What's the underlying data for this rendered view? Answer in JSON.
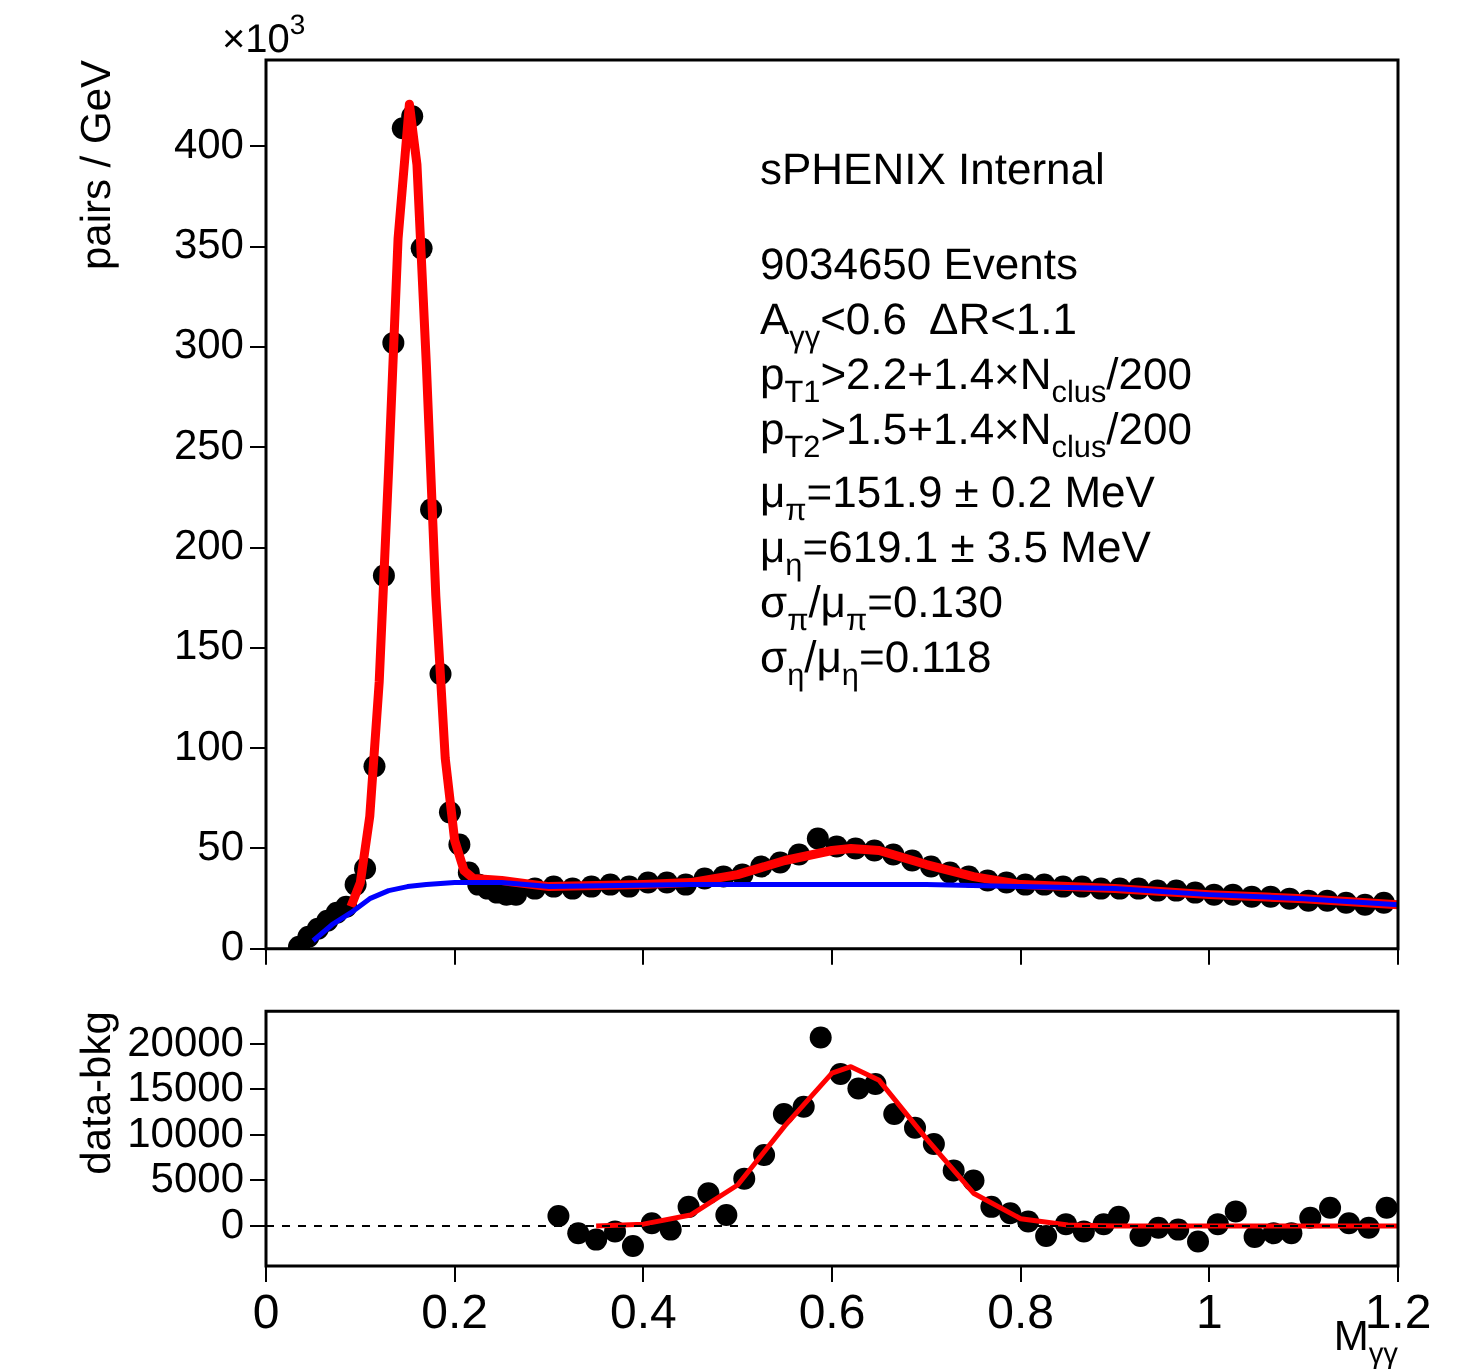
{
  "chart_data": [
    {
      "type": "scatter",
      "ylabel": "pairs / GeV",
      "xlim": [
        0,
        1.2
      ],
      "xticks": [
        0,
        0.2,
        0.4,
        0.6,
        0.8,
        1,
        1.2
      ],
      "ylim": [
        0,
        443
      ],
      "yticks": [
        0,
        50,
        100,
        150,
        200,
        250,
        300,
        350,
        400
      ],
      "tick_labels": "y",
      "marker": "circle",
      "legend": false,
      "grid": false,
      "annotations": [
        "×10$^{3}$",
        "sPHENIX Internal",
        "9034650 Events",
        "A$_{γγ}$<0.6  ΔR<1.1",
        "p$_{T1}$>2.2+1.4×N$_{clus}$/200",
        "p$_{T2}$>1.5+1.4×N$_{clus}$/200",
        "μ$_{π}$=151.9 ± 0.2 MeV",
        "μ$_{η}$=619.1 ± 3.5 MeV",
        "σ$_{π}$/μ$_{π}$=0.130",
        "σ$_{η}$/μ$_{η}$=0.118"
      ],
      "series": [
        {
          "type": "line",
          "marker": "none",
          "color": "#ff0000",
          "x": [
            0.09,
            0.1,
            0.11,
            0.12,
            0.13,
            0.14,
            0.152,
            0.16,
            0.17,
            0.18,
            0.19,
            0.2,
            0.21,
            0.22,
            0.25,
            0.3,
            0.4,
            0.45,
            0.5,
            0.55,
            0.6,
            0.62,
            0.65,
            0.7,
            0.75,
            0.8,
            0.85,
            0.9,
            1.0,
            1.1,
            1.2
          ],
          "values": [
            21,
            33,
            66,
            133,
            239,
            354,
            421,
            391,
            291,
            176,
            95,
            54,
            39,
            35,
            34,
            31,
            32,
            33,
            37,
            44,
            49,
            50,
            49,
            42,
            36,
            32,
            31,
            30,
            27,
            25,
            22
          ]
        },
        {
          "type": "line",
          "marker": "none",
          "color": "#0000ff",
          "x": [
            0.05,
            0.07,
            0.09,
            0.11,
            0.13,
            0.15,
            0.17,
            0.2,
            0.25,
            0.3,
            0.45,
            0.5,
            0.7,
            0.8,
            0.9,
            1.0,
            1.1,
            1.2
          ],
          "values": [
            4,
            12,
            18,
            25,
            29,
            31,
            32,
            33,
            33,
            31,
            32,
            32,
            32,
            31,
            30,
            27,
            25,
            22
          ]
        },
        {
          "color": "#000000",
          "x": [
            0.035,
            0.045,
            0.055,
            0.065,
            0.075,
            0.085,
            0.095,
            0.105,
            0.115,
            0.125,
            0.135,
            0.145,
            0.155,
            0.165,
            0.175,
            0.185,
            0.195,
            0.205,
            0.215,
            0.225,
            0.235,
            0.245,
            0.255,
            0.265,
            0.285,
            0.305,
            0.325,
            0.345,
            0.365,
            0.385,
            0.405,
            0.425,
            0.445,
            0.465,
            0.485,
            0.505,
            0.525,
            0.545,
            0.565,
            0.585,
            0.605,
            0.625,
            0.645,
            0.665,
            0.685,
            0.705,
            0.725,
            0.745,
            0.765,
            0.785,
            0.805,
            0.825,
            0.845,
            0.865,
            0.885,
            0.905,
            0.925,
            0.945,
            0.965,
            0.985,
            1.005,
            1.025,
            1.045,
            1.065,
            1.085,
            1.105,
            1.125,
            1.145,
            1.165,
            1.185
          ],
          "values": [
            1,
            6,
            10,
            14,
            18,
            21,
            32,
            40,
            91,
            186,
            302,
            409,
            415,
            349,
            219,
            137,
            68,
            52,
            38,
            32,
            30,
            28,
            27,
            27,
            30,
            31,
            30,
            31,
            32,
            31,
            33,
            33,
            32,
            35,
            36,
            37,
            41,
            43,
            47,
            55,
            51,
            50,
            49,
            47,
            44,
            41,
            38,
            36,
            34,
            33,
            32,
            32,
            31,
            31,
            30,
            30,
            30,
            29,
            29,
            28,
            27,
            27,
            26,
            26,
            25,
            24,
            24,
            23,
            22,
            23
          ]
        }
      ]
    },
    {
      "type": "scatter",
      "ylabel": "data-bkg",
      "xlabel": "M$_{γγ}$",
      "xlim": [
        0,
        1.2
      ],
      "xticks": [
        0,
        0.2,
        0.4,
        0.6,
        0.8,
        1,
        1.2
      ],
      "ylim": [
        -4400,
        23600
      ],
      "yticks": [
        0,
        5000,
        10000,
        15000,
        20000
      ],
      "marker": "circle",
      "legend": false,
      "grid": false,
      "ref_lines": [
        {
          "axis": "y",
          "value": 0,
          "color": "#000000",
          "line_style": "dashed"
        }
      ],
      "series": [
        {
          "type": "line",
          "marker": "none",
          "color": "#ff0000",
          "x": [
            0.35,
            0.4,
            0.45,
            0.5,
            0.55,
            0.6,
            0.62,
            0.65,
            0.7,
            0.75,
            0.8,
            0.85,
            0.9,
            1.0,
            1.1,
            1.2
          ],
          "values": [
            0,
            200,
            1200,
            4500,
            11000,
            16800,
            17500,
            16000,
            9600,
            3600,
            800,
            100,
            0,
            0,
            0,
            0
          ]
        },
        {
          "color": "#000000",
          "x": [
            0.31,
            0.331,
            0.35,
            0.37,
            0.389,
            0.409,
            0.429,
            0.448,
            0.469,
            0.488,
            0.507,
            0.528,
            0.549,
            0.57,
            0.588,
            0.609,
            0.628,
            0.646,
            0.666,
            0.688,
            0.708,
            0.729,
            0.75,
            0.769,
            0.789,
            0.808,
            0.827,
            0.848,
            0.867,
            0.888,
            0.904,
            0.927,
            0.946,
            0.967,
            0.988,
            1.009,
            1.028,
            1.048,
            1.068,
            1.087,
            1.107,
            1.128,
            1.148,
            1.169,
            1.188
          ],
          "values": [
            1100,
            -800,
            -1500,
            -600,
            -2200,
            300,
            -400,
            2100,
            3600,
            1200,
            5200,
            7800,
            12300,
            13100,
            20700,
            16700,
            15100,
            15600,
            12300,
            10800,
            9000,
            6100,
            5000,
            2100,
            1400,
            500,
            -1100,
            200,
            -600,
            200,
            1000,
            -1100,
            -200,
            -400,
            -1700,
            200,
            1600,
            -1200,
            -800,
            -800,
            900,
            2000,
            300,
            -200,
            2000
          ]
        }
      ]
    }
  ]
}
